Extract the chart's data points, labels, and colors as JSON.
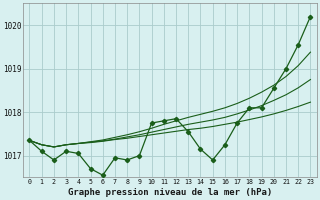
{
  "title": "Graphe pression niveau de la mer (hPa)",
  "background_color": "#d8f0f0",
  "grid_color": "#aacccc",
  "line_color": "#1a5e1a",
  "ylim": [
    1016.5,
    1020.5
  ],
  "yticks": [
    1017,
    1018,
    1019,
    1020
  ],
  "xticks": [
    0,
    1,
    2,
    3,
    4,
    5,
    6,
    7,
    8,
    9,
    10,
    11,
    12,
    13,
    14,
    15,
    16,
    17,
    18,
    19,
    20,
    21,
    22,
    23
  ],
  "series": {
    "main": [
      1017.35,
      1017.1,
      1016.9,
      1017.1,
      1017.05,
      1016.7,
      1016.55,
      1016.95,
      1016.9,
      1017.0,
      1017.75,
      1017.8,
      1017.85,
      1017.55,
      1017.15,
      1016.9,
      1017.25,
      1017.75,
      1018.1,
      1018.1,
      1018.55,
      1019.0,
      1019.55,
      1020.2
    ],
    "line1": [
      1017.35,
      1017.25,
      1017.2,
      1017.25,
      1017.28,
      1017.3,
      1017.33,
      1017.37,
      1017.4,
      1017.44,
      1017.48,
      1017.52,
      1017.56,
      1017.6,
      1017.63,
      1017.67,
      1017.72,
      1017.77,
      1017.83,
      1017.89,
      1017.96,
      1018.04,
      1018.13,
      1018.23
    ],
    "line2": [
      1017.35,
      1017.25,
      1017.2,
      1017.25,
      1017.28,
      1017.31,
      1017.34,
      1017.38,
      1017.43,
      1017.48,
      1017.54,
      1017.6,
      1017.66,
      1017.72,
      1017.77,
      1017.82,
      1017.88,
      1017.96,
      1018.05,
      1018.15,
      1018.27,
      1018.4,
      1018.56,
      1018.75
    ],
    "line3": [
      1017.35,
      1017.25,
      1017.2,
      1017.25,
      1017.28,
      1017.32,
      1017.36,
      1017.42,
      1017.48,
      1017.55,
      1017.63,
      1017.72,
      1017.8,
      1017.88,
      1017.95,
      1018.02,
      1018.1,
      1018.2,
      1018.32,
      1018.46,
      1018.62,
      1018.82,
      1019.07,
      1019.38
    ]
  }
}
